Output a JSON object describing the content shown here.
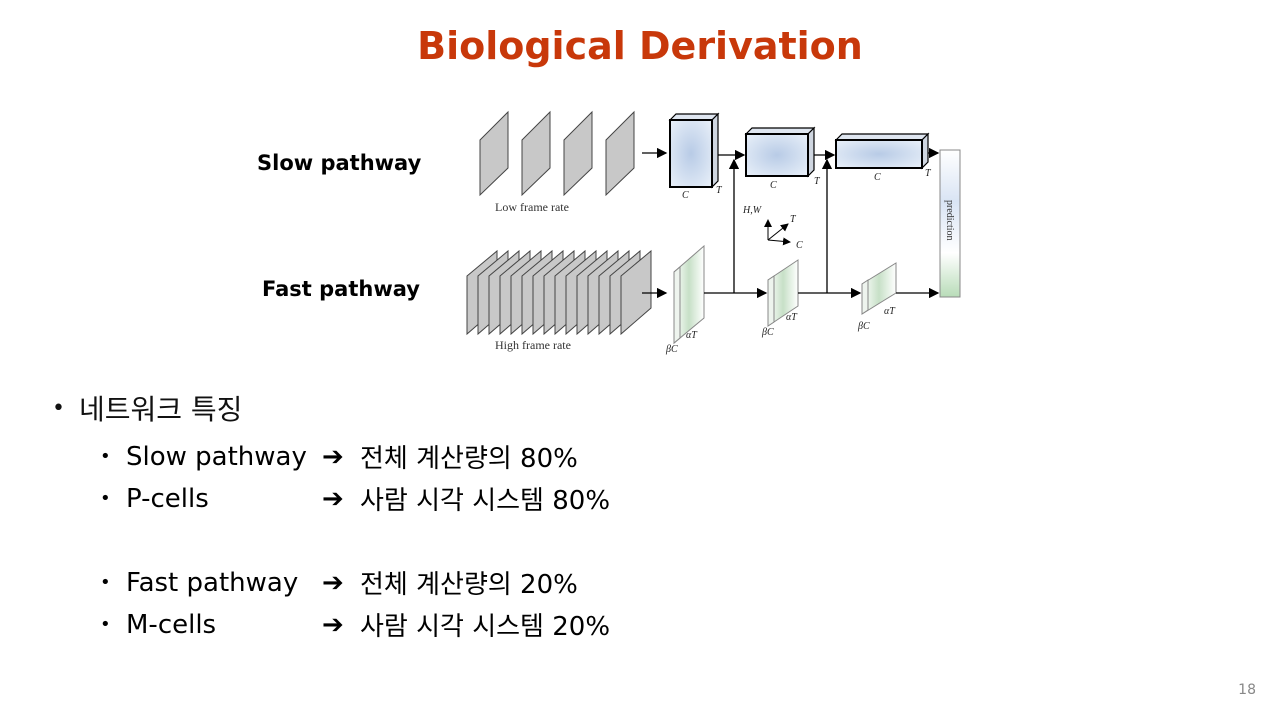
{
  "slide": {
    "title": "Biological Derivation",
    "page_number": "18"
  },
  "diagram": {
    "slow_label": "Slow pathway",
    "fast_label": "Fast pathway",
    "low_frame_rate": "Low frame rate",
    "high_frame_rate": "High frame rate",
    "prediction": "prediction",
    "axis": {
      "hw": "H,W",
      "t": "T",
      "c": "C"
    },
    "slow_dims": {
      "c": "C",
      "t": "T"
    },
    "fast_dims": {
      "bc": "βC",
      "at": "αT"
    }
  },
  "bullets": {
    "heading": "네트워크 특징",
    "arrow": "➔",
    "items": [
      {
        "label": "Slow pathway",
        "text": "전체 계산량의 80%"
      },
      {
        "label": "P-cells",
        "text": "사람 시각 시스템 80%"
      },
      {
        "label": "Fast pathway",
        "text": "전체 계산량의 20%"
      },
      {
        "label": "M-cells",
        "text": "사람 시각 시스템 20%"
      }
    ]
  }
}
